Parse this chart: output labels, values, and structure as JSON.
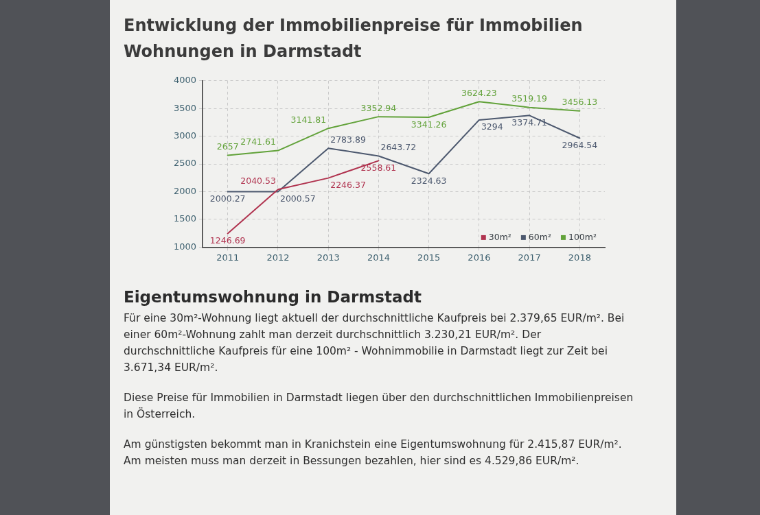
{
  "chart_data": {
    "type": "line",
    "title": "Entwicklung der Immobilienpreise für Immobilien Wohnungen in Darmstadt",
    "categories": [
      "2011",
      "2012",
      "2013",
      "2014",
      "2015",
      "2016",
      "2017",
      "2018"
    ],
    "series": [
      {
        "name": "30m²",
        "color": "#b0334f",
        "values": [
          1246.69,
          2040.53,
          2246.37,
          2558.61,
          null,
          null,
          null,
          null
        ]
      },
      {
        "name": "60m²",
        "color": "#4c586e",
        "values": [
          2000.27,
          2000.57,
          2783.89,
          2643.72,
          2324.63,
          3294,
          3374.71,
          2964.54
        ]
      },
      {
        "name": "100m²",
        "color": "#62a23a",
        "values": [
          2657,
          2741.61,
          3141.81,
          3352.94,
          3341.26,
          3624.23,
          3519.19,
          3456.13
        ]
      }
    ],
    "ylim": [
      1000,
      4000
    ],
    "yticks": [
      1000,
      1500,
      2000,
      2500,
      3000,
      3500,
      4000
    ],
    "grid": true,
    "legend": "bottom right",
    "data_labels": true,
    "annotations": [
      "Eigentumswohnung in Darmstadt",
      "Für eine 30m²-Wohnung liegt aktuell der durchschnittliche Kaufpreis bei 2.379,65 EUR/m². Bei einer 60m²-Wohnung zahlt man derzeit durchschnittlich 3.230,21 EUR/m². Der durchschnittliche Kaufpreis für eine 100m² - Wohnimmobilie in Darmstadt liegt zur Zeit bei 3.671,34 EUR/m².",
      "Diese Preise für Immobilien in Darmstadt liegen über den durchschnittlichen Immobilienpreisen in Österreich.",
      "Am günstigsten bekommt man in Kranichstein eine Eigentumswohnung für 2.415,87 EUR/m². Am meisten muss man derzeit in Bessungen bezahlen, hier sind es 4.529,86 EUR/m²."
    ]
  }
}
